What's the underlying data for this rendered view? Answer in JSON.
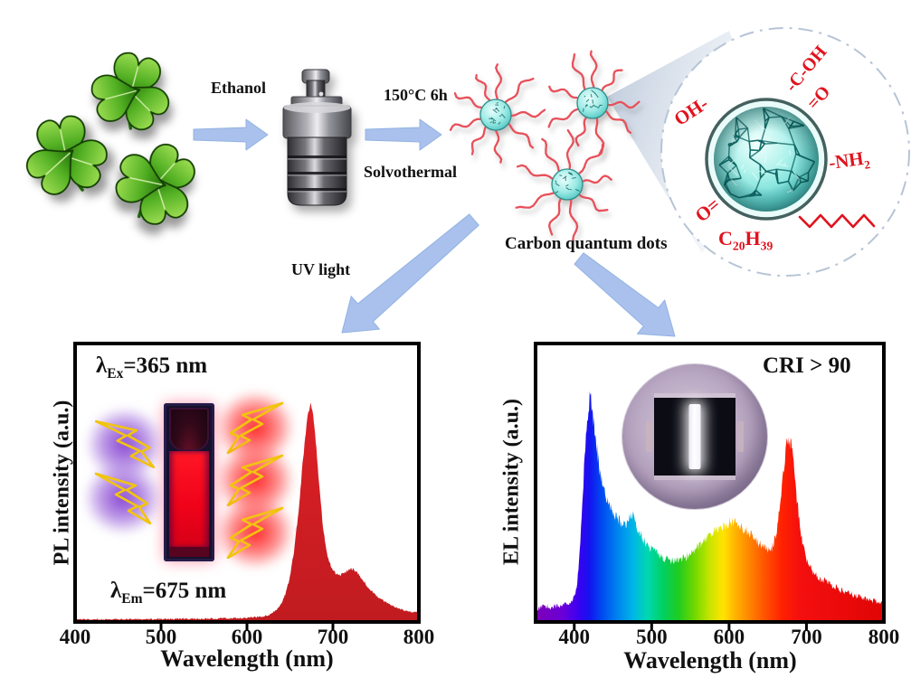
{
  "figure": {
    "scheme": {
      "ethanol": "Ethanol",
      "condition": "150°C 6h",
      "solvothermal": "Solvothermal",
      "uv_light": "UV light",
      "cqd_label": "Carbon quantum dots",
      "surface_groups": {
        "hydroxyl": "OH-",
        "carboxyl": "-C-OH",
        "carboxyl_oxo": "=O",
        "amine": "-NH",
        "amine_sub": "2",
        "carbonyl": "O=",
        "alkyl_c": "C",
        "alkyl_c_sub": "20",
        "alkyl_h": "H",
        "alkyl_h_sub": "39"
      }
    },
    "pl_chart": {
      "ylabel": "PL intensity (a.u.)",
      "xlabel": "Wavelength (nm)",
      "ex_prefix": "λ",
      "ex_sub": "Ex",
      "ex_value": "=365 nm",
      "em_prefix": "λ",
      "em_sub": "Em",
      "em_value": "=675 nm"
    },
    "el_chart": {
      "ylabel": "EL intensity (a.u.)",
      "xlabel": "Wavelength (nm)",
      "cri": "CRI > 90"
    }
  },
  "colors": {
    "arrow_blue": "#a7c0ec",
    "label_red": "#e0131e",
    "pl_red": "#d52025",
    "dot_teal": "#63d2cf",
    "clover_green": "#3f9417",
    "dash_circle": "#b6c4d6"
  },
  "chart_data": [
    {
      "type": "area",
      "name": "PL emission spectrum",
      "xlabel": "Wavelength (nm)",
      "ylabel": "PL intensity (a.u.)",
      "xlim": [
        400,
        800
      ],
      "xticks": [
        400,
        500,
        600,
        700,
        800
      ],
      "ylim": [
        0,
        1
      ],
      "grid": false,
      "legend": "none",
      "fill": "solid_red",
      "annotations": [
        "λEx=365 nm",
        "λEm=675 nm"
      ],
      "points": [
        [
          400,
          0.006
        ],
        [
          420,
          0.006
        ],
        [
          440,
          0.006
        ],
        [
          460,
          0.007
        ],
        [
          480,
          0.007
        ],
        [
          500,
          0.007
        ],
        [
          520,
          0.008
        ],
        [
          540,
          0.008
        ],
        [
          560,
          0.009
        ],
        [
          580,
          0.01
        ],
        [
          600,
          0.012
        ],
        [
          610,
          0.014
        ],
        [
          620,
          0.018
        ],
        [
          628,
          0.025
        ],
        [
          634,
          0.04
        ],
        [
          640,
          0.065
        ],
        [
          645,
          0.1
        ],
        [
          650,
          0.16
        ],
        [
          655,
          0.26
        ],
        [
          660,
          0.4
        ],
        [
          664,
          0.55
        ],
        [
          668,
          0.68
        ],
        [
          671,
          0.75
        ],
        [
          674,
          0.79
        ],
        [
          676,
          0.78
        ],
        [
          679,
          0.7
        ],
        [
          682,
          0.58
        ],
        [
          685,
          0.46
        ],
        [
          688,
          0.36
        ],
        [
          691,
          0.285
        ],
        [
          694,
          0.235
        ],
        [
          697,
          0.205
        ],
        [
          700,
          0.185
        ],
        [
          704,
          0.172
        ],
        [
          708,
          0.168
        ],
        [
          712,
          0.172
        ],
        [
          716,
          0.182
        ],
        [
          720,
          0.19
        ],
        [
          724,
          0.188
        ],
        [
          728,
          0.178
        ],
        [
          732,
          0.162
        ],
        [
          736,
          0.145
        ],
        [
          740,
          0.128
        ],
        [
          745,
          0.11
        ],
        [
          750,
          0.094
        ],
        [
          756,
          0.08
        ],
        [
          762,
          0.068
        ],
        [
          768,
          0.058
        ],
        [
          775,
          0.048
        ],
        [
          782,
          0.04
        ],
        [
          790,
          0.034
        ],
        [
          800,
          0.03
        ]
      ]
    },
    {
      "type": "area",
      "name": "EL spectrum of CQD white LED",
      "xlabel": "Wavelength (nm)",
      "ylabel": "EL intensity (a.u.)",
      "xlim": [
        350,
        800
      ],
      "xticks": [
        400,
        500,
        600,
        700,
        800
      ],
      "ylim": [
        0,
        1
      ],
      "grid": false,
      "legend": "none",
      "fill": "rainbow",
      "annotations": [
        "CRI > 90"
      ],
      "points": [
        [
          350,
          0.04
        ],
        [
          355,
          0.048
        ],
        [
          360,
          0.052
        ],
        [
          365,
          0.055
        ],
        [
          370,
          0.05
        ],
        [
          375,
          0.056
        ],
        [
          380,
          0.052
        ],
        [
          385,
          0.058
        ],
        [
          390,
          0.062
        ],
        [
          395,
          0.07
        ],
        [
          400,
          0.085
        ],
        [
          403,
          0.12
        ],
        [
          406,
          0.2
        ],
        [
          409,
          0.34
        ],
        [
          412,
          0.52
        ],
        [
          415,
          0.68
        ],
        [
          418,
          0.78
        ],
        [
          420,
          0.82
        ],
        [
          422,
          0.8
        ],
        [
          425,
          0.74
        ],
        [
          428,
          0.66
        ],
        [
          432,
          0.57
        ],
        [
          436,
          0.5
        ],
        [
          440,
          0.455
        ],
        [
          445,
          0.42
        ],
        [
          450,
          0.395
        ],
        [
          455,
          0.375
        ],
        [
          460,
          0.36
        ],
        [
          465,
          0.35
        ],
        [
          468,
          0.36
        ],
        [
          472,
          0.385
        ],
        [
          476,
          0.395
        ],
        [
          480,
          0.355
        ],
        [
          485,
          0.32
        ],
        [
          490,
          0.295
        ],
        [
          495,
          0.275
        ],
        [
          500,
          0.26
        ],
        [
          510,
          0.24
        ],
        [
          520,
          0.225
        ],
        [
          530,
          0.218
        ],
        [
          540,
          0.225
        ],
        [
          550,
          0.245
        ],
        [
          560,
          0.27
        ],
        [
          570,
          0.3
        ],
        [
          580,
          0.325
        ],
        [
          590,
          0.345
        ],
        [
          600,
          0.36
        ],
        [
          605,
          0.362
        ],
        [
          610,
          0.355
        ],
        [
          615,
          0.345
        ],
        [
          620,
          0.335
        ],
        [
          628,
          0.315
        ],
        [
          636,
          0.29
        ],
        [
          644,
          0.27
        ],
        [
          650,
          0.258
        ],
        [
          654,
          0.26
        ],
        [
          658,
          0.285
        ],
        [
          662,
          0.34
        ],
        [
          666,
          0.43
        ],
        [
          670,
          0.54
        ],
        [
          673,
          0.63
        ],
        [
          676,
          0.67
        ],
        [
          679,
          0.655
        ],
        [
          682,
          0.6
        ],
        [
          685,
          0.52
        ],
        [
          688,
          0.435
        ],
        [
          691,
          0.36
        ],
        [
          694,
          0.3
        ],
        [
          697,
          0.255
        ],
        [
          700,
          0.225
        ],
        [
          705,
          0.195
        ],
        [
          710,
          0.175
        ],
        [
          715,
          0.162
        ],
        [
          720,
          0.152
        ],
        [
          728,
          0.138
        ],
        [
          736,
          0.126
        ],
        [
          744,
          0.115
        ],
        [
          752,
          0.105
        ],
        [
          760,
          0.096
        ],
        [
          768,
          0.088
        ],
        [
          776,
          0.081
        ],
        [
          784,
          0.075
        ],
        [
          792,
          0.069
        ],
        [
          800,
          0.064
        ]
      ]
    }
  ]
}
